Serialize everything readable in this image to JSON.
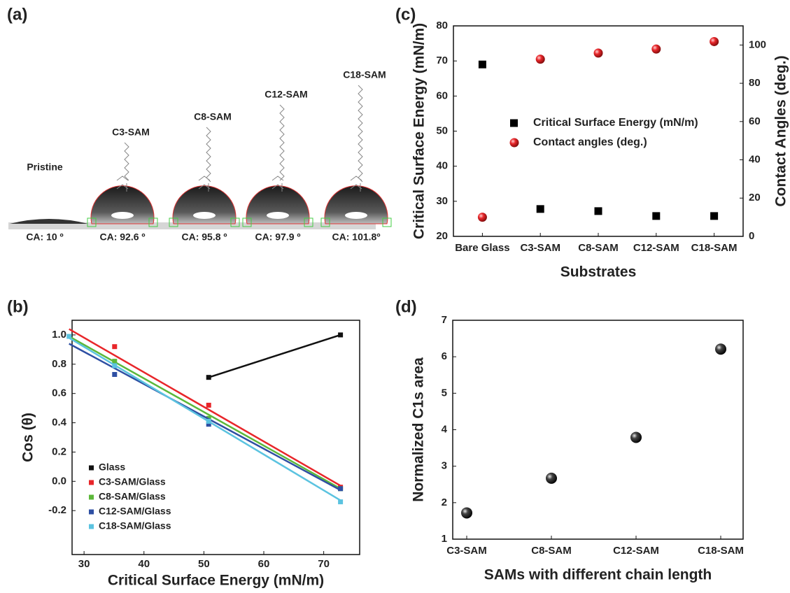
{
  "figure_a": {
    "label": "(a)",
    "samples": [
      {
        "name": "Pristine",
        "contact_angle": "CA: 10 º"
      },
      {
        "name": "C3-SAM",
        "contact_angle": "CA: 92.6 º"
      },
      {
        "name": "C8-SAM",
        "contact_angle": "CA:  95.8 º"
      },
      {
        "name": "C12-SAM",
        "contact_angle": "CA: 97.9 º"
      },
      {
        "name": "C18-SAM",
        "contact_angle": "CA: 101.8º"
      }
    ]
  },
  "chart_data": [
    {
      "panel": "(b)",
      "type": "scatter",
      "xlabel": "Critical Surface Energy (mN/m)",
      "ylabel": "Cos (θ)",
      "xlim": [
        28,
        76
      ],
      "ylim": [
        -0.5,
        1.1
      ],
      "xticks": [
        30,
        40,
        50,
        60,
        70
      ],
      "yticks": [
        -0.2,
        {
          "value": 0,
          "label": "0.0"
        },
        0.2,
        0.4,
        0.6,
        0.8,
        {
          "value": 1,
          "label": "1.0"
        }
      ],
      "legend": "lower left",
      "series": [
        {
          "name": "Glass",
          "color": "#111111",
          "x": [
            50.8,
            72.8
          ],
          "values": [
            0.71,
            1.0
          ],
          "connected": true
        },
        {
          "name": "C3-SAM/Glass",
          "color": "#e8262a",
          "x": [
            35.1,
            50.8,
            72.8
          ],
          "values": [
            0.92,
            0.52,
            -0.04
          ],
          "fit_x": [
            27.5,
            72.8
          ],
          "fit_values": [
            1.04,
            -0.03
          ]
        },
        {
          "name": "C8-SAM/Glass",
          "color": "#5cb83a",
          "x": [
            35.1,
            50.8,
            72.8
          ],
          "values": [
            0.82,
            0.43,
            -0.05
          ],
          "fit_x": [
            27.5,
            72.8
          ],
          "fit_values": [
            0.99,
            -0.05
          ]
        },
        {
          "name": "C12-SAM/Glass",
          "color": "#2e4fa3",
          "x": [
            35.1,
            50.8,
            72.8
          ],
          "values": [
            0.73,
            0.39,
            -0.05
          ],
          "fit_x": [
            27.5,
            72.8
          ],
          "fit_values": [
            0.94,
            -0.06
          ]
        },
        {
          "name": "C18-SAM/Glass",
          "color": "#5bc3e0",
          "x": [
            27.5,
            35.1,
            50.8,
            72.8
          ],
          "values": [
            0.99,
            0.79,
            0.41,
            -0.14
          ],
          "fit_x": [
            27.5,
            72.8
          ],
          "fit_values": [
            0.98,
            -0.13
          ]
        }
      ]
    },
    {
      "panel": "(c)",
      "type": "dot",
      "xlabel": "Substrates",
      "ylabel": "Critical Surface Energy (mN/m)",
      "y2label": "Contact Angles (deg.)",
      "categories": [
        "Bare Glass",
        "C3-SAM",
        "C8-SAM",
        "C12-SAM",
        "C18-SAM"
      ],
      "ylim": [
        20,
        80
      ],
      "yticks": [
        20,
        30,
        40,
        50,
        60,
        70,
        80
      ],
      "y2lim": [
        0,
        110
      ],
      "y2ticks": [
        0,
        20,
        40,
        60,
        80,
        100
      ],
      "legend": "center",
      "series": [
        {
          "name": "Critical Surface Energy (mN/m)",
          "color": "#000000",
          "marker": "square",
          "values": [
            69,
            27.8,
            27.2,
            25.8,
            25.8
          ]
        },
        {
          "name": "Contact angles (deg.)",
          "color": "#e8262a",
          "marker": "sphere",
          "axis": "y2",
          "values": [
            10,
            92.6,
            95.8,
            97.9,
            101.8
          ]
        }
      ]
    },
    {
      "panel": "(d)",
      "type": "dot",
      "xlabel": "SAMs with different chain length",
      "ylabel": "Normalized C1s area",
      "categories": [
        "C3-SAM",
        "C8-SAM",
        "C12-SAM",
        "C18-SAM"
      ],
      "ylim": [
        1,
        7
      ],
      "yticks": [
        1,
        2,
        3,
        4,
        5,
        6,
        7
      ],
      "series": [
        {
          "color": "#222222",
          "marker": "sphere",
          "values": [
            1.72,
            2.67,
            3.79,
            6.21
          ]
        }
      ]
    }
  ]
}
